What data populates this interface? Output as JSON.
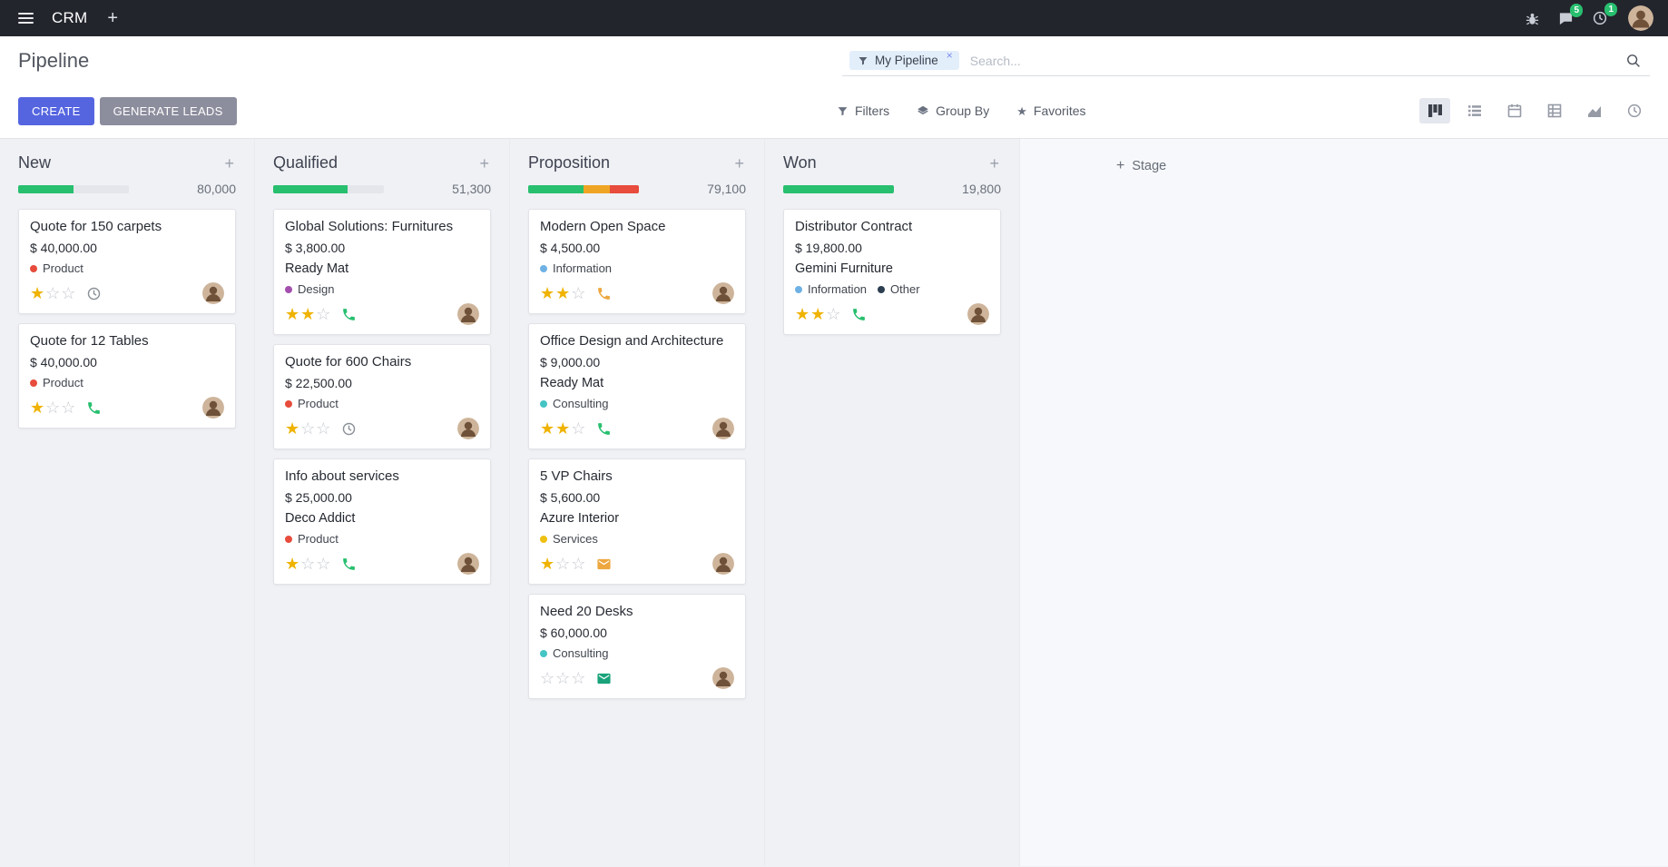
{
  "topbar": {
    "app_name": "CRM",
    "messages_badge": "5",
    "activities_badge": "1"
  },
  "page": {
    "title": "Pipeline"
  },
  "search": {
    "facet_label": "My Pipeline",
    "facet_remove": "×",
    "placeholder": "Search..."
  },
  "buttons": {
    "create": "CREATE",
    "generate_leads": "GENERATE LEADS",
    "filters": "Filters",
    "group_by": "Group By",
    "favorites": "Favorites"
  },
  "view_switcher": [
    "kanban",
    "list",
    "calendar",
    "pivot",
    "graph",
    "activity"
  ],
  "stage": {
    "label": "Stage"
  },
  "icons": {
    "plus": "+",
    "star_filled": "★",
    "star_empty": "☆",
    "favorites_star": "★"
  },
  "colors": {
    "topbar_bg": "#23252d",
    "create_button": "#5565e0",
    "generate_button": "#8c8d9d",
    "progress_green": "#28bf6f",
    "progress_yellow": "#efa524",
    "progress_red": "#e74c3c",
    "star_gold": "#efb300",
    "badge_green": "#28bf6f"
  },
  "columns": [
    {
      "name": "New",
      "total": "80,000",
      "progress": [
        {
          "color": "#28bf6f",
          "pct": 50
        }
      ],
      "cards": [
        {
          "title": "Quote for 150 carpets",
          "amount": "$ 40,000.00",
          "tags": [
            {
              "label": "Product",
              "color": "#e74c3c"
            }
          ],
          "stars": [
            true,
            false,
            false
          ],
          "activity": {
            "type": "clock",
            "color": "#8a9097"
          }
        },
        {
          "title": "Quote for 12 Tables",
          "amount": "$ 40,000.00",
          "tags": [
            {
              "label": "Product",
              "color": "#e74c3c"
            }
          ],
          "stars": [
            true,
            false,
            false
          ],
          "activity": {
            "type": "phone",
            "color": "#28bf6f"
          }
        }
      ]
    },
    {
      "name": "Qualified",
      "total": "51,300",
      "progress": [
        {
          "color": "#28bf6f",
          "pct": 67
        }
      ],
      "cards": [
        {
          "title": "Global Solutions: Furnitures",
          "amount": "$ 3,800.00",
          "partner": "Ready Mat",
          "tags": [
            {
              "label": "Design",
              "color": "#a34fae"
            }
          ],
          "stars": [
            true,
            true,
            false
          ],
          "activity": {
            "type": "phone",
            "color": "#28bf6f"
          }
        },
        {
          "title": "Quote for 600 Chairs",
          "amount": "$ 22,500.00",
          "tags": [
            {
              "label": "Product",
              "color": "#e74c3c"
            }
          ],
          "stars": [
            true,
            false,
            false
          ],
          "activity": {
            "type": "clock",
            "color": "#8a9097"
          }
        },
        {
          "title": "Info about services",
          "amount": "$ 25,000.00",
          "partner": "Deco Addict",
          "tags": [
            {
              "label": "Product",
              "color": "#e74c3c"
            }
          ],
          "stars": [
            true,
            false,
            false
          ],
          "activity": {
            "type": "phone",
            "color": "#28bf6f"
          }
        }
      ]
    },
    {
      "name": "Proposition",
      "total": "79,100",
      "progress": [
        {
          "color": "#28bf6f",
          "pct": 50
        },
        {
          "color": "#efa524",
          "pct": 24
        },
        {
          "color": "#e74c3c",
          "pct": 26
        }
      ],
      "cards": [
        {
          "title": "Modern Open Space",
          "amount": "$ 4,500.00",
          "tags": [
            {
              "label": "Information",
              "color": "#6fb1e4"
            }
          ],
          "stars": [
            true,
            true,
            false
          ],
          "activity": {
            "type": "phone",
            "color": "#eda73f"
          }
        },
        {
          "title": "Office Design and Architecture",
          "amount": "$ 9,000.00",
          "partner": "Ready Mat",
          "tags": [
            {
              "label": "Consulting",
              "color": "#45c4c4"
            }
          ],
          "stars": [
            true,
            true,
            false
          ],
          "activity": {
            "type": "phone",
            "color": "#28bf6f"
          }
        },
        {
          "title": "5 VP Chairs",
          "amount": "$ 5,600.00",
          "partner": "Azure Interior",
          "tags": [
            {
              "label": "Services",
              "color": "#eec012"
            }
          ],
          "stars": [
            true,
            false,
            false
          ],
          "activity": {
            "type": "envelope",
            "color": "#eda73f"
          }
        },
        {
          "title": "Need 20 Desks",
          "amount": "$ 60,000.00",
          "tags": [
            {
              "label": "Consulting",
              "color": "#45c4c4"
            }
          ],
          "stars": [
            false,
            false,
            false
          ],
          "activity": {
            "type": "envelope",
            "color": "#1aa37a"
          }
        }
      ]
    },
    {
      "name": "Won",
      "total": "19,800",
      "progress": [
        {
          "color": "#28bf6f",
          "pct": 100
        }
      ],
      "cards": [
        {
          "title": "Distributor Contract",
          "amount": "$ 19,800.00",
          "partner": "Gemini Furniture",
          "tags": [
            {
              "label": "Information",
              "color": "#6fb1e4"
            },
            {
              "label": "Other",
              "color": "#2c3e50"
            }
          ],
          "stars": [
            true,
            true,
            false
          ],
          "activity": {
            "type": "phone",
            "color": "#28bf6f"
          }
        }
      ]
    }
  ]
}
